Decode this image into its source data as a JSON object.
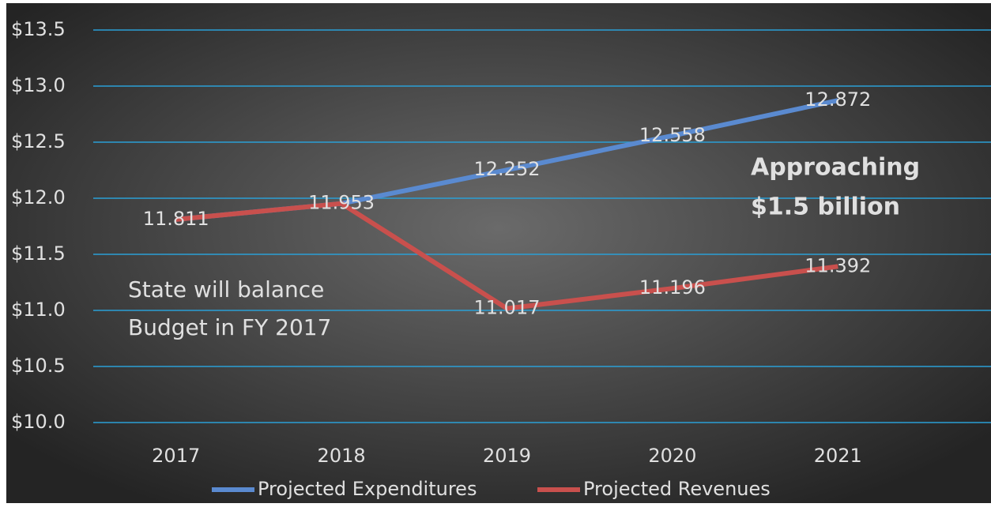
{
  "chart_data": {
    "type": "line",
    "categories": [
      "2017",
      "2018",
      "2019",
      "2020",
      "2021"
    ],
    "series": [
      {
        "name": "Projected Expenditures",
        "color": "#5a8ad0",
        "values": [
          11.811,
          11.953,
          12.252,
          12.558,
          12.872
        ]
      },
      {
        "name": "Projected Revenues",
        "color": "#c9504d",
        "values": [
          11.811,
          11.953,
          11.017,
          11.196,
          11.392
        ]
      }
    ],
    "ylim": [
      10,
      13.5
    ],
    "yticks": [
      {
        "value": 10,
        "label": "$10.0"
      },
      {
        "value": 10.5,
        "label": "$10.5"
      },
      {
        "value": 11,
        "label": "$11.0"
      },
      {
        "value": 11.5,
        "label": "$11.5"
      },
      {
        "value": 12,
        "label": "$12.0"
      },
      {
        "value": 12.5,
        "label": "$12.5"
      },
      {
        "value": 13,
        "label": "$13.0"
      },
      {
        "value": 13.5,
        "label": "$13.5"
      }
    ],
    "grid": true,
    "grid_color": "#2a9fd6",
    "legend": "bottom",
    "annotations": [
      {
        "lines": [
          "State will balance",
          "Budget in FY 2017"
        ]
      },
      {
        "lines": [
          "Approaching",
          "$1.5 billion"
        ]
      }
    ]
  }
}
